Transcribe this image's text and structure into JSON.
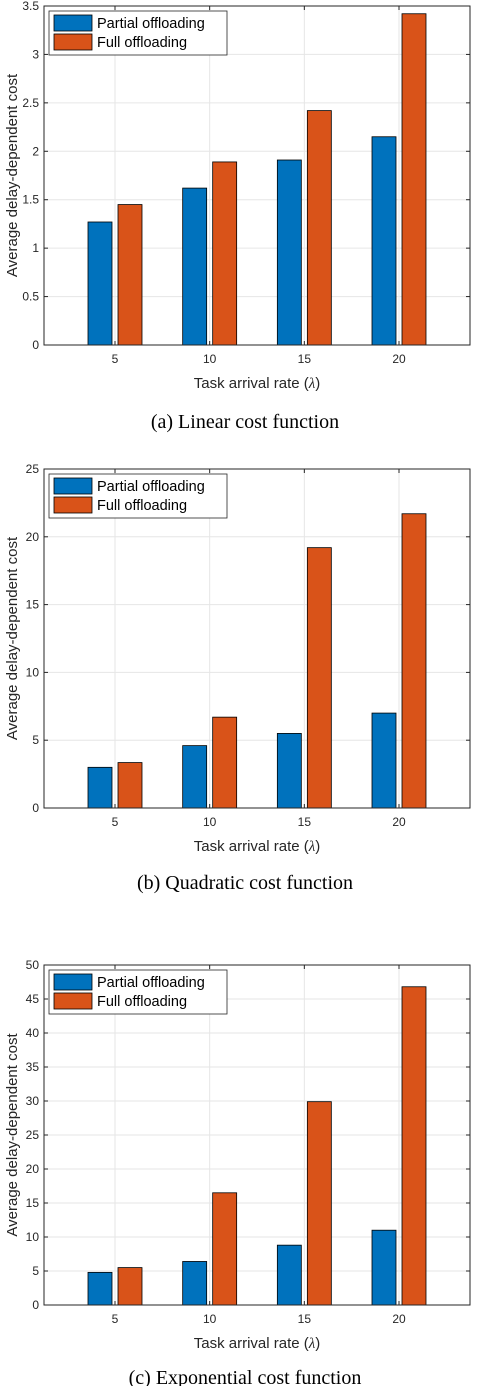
{
  "colors": {
    "partial": "#0072bd",
    "full": "#d95319",
    "grid": "#e6e6e6",
    "axis": "#262626"
  },
  "legend": [
    "Partial offloading",
    "Full offloading"
  ],
  "chart_data": [
    {
      "type": "bar",
      "caption": "(a) Linear cost function",
      "xlabel": "Task arrival rate (λ)",
      "xlabel_prefix": "Task arrival rate (",
      "xlabel_symbol": "λ",
      "xlabel_suffix": ")",
      "ylabel": "Average delay-dependent cost",
      "categories": [
        "5",
        "10",
        "15",
        "20"
      ],
      "ylim": [
        0,
        3.5
      ],
      "yticks": [
        "0",
        "0.5",
        "1",
        "1.5",
        "2",
        "2.5",
        "3",
        "3.5"
      ],
      "yticks_values": [
        0,
        0.5,
        1,
        1.5,
        2,
        2.5,
        3,
        3.5
      ],
      "grid": true,
      "legend_position": "top-left",
      "series": [
        {
          "name": "Partial offloading",
          "values": [
            1.27,
            1.62,
            1.91,
            2.15
          ]
        },
        {
          "name": "Full offloading",
          "values": [
            1.45,
            1.89,
            2.42,
            3.42
          ]
        }
      ]
    },
    {
      "type": "bar",
      "caption": "(b) Quadratic cost function",
      "xlabel": "Task arrival rate (λ)",
      "xlabel_prefix": "Task arrival rate (",
      "xlabel_symbol": "λ",
      "xlabel_suffix": ")",
      "ylabel": "Average delay-dependent cost",
      "categories": [
        "5",
        "10",
        "15",
        "20"
      ],
      "ylim": [
        0,
        25
      ],
      "yticks": [
        "0",
        "5",
        "10",
        "15",
        "20",
        "25"
      ],
      "yticks_values": [
        0,
        5,
        10,
        15,
        20,
        25
      ],
      "grid": true,
      "legend_position": "top-left",
      "series": [
        {
          "name": "Partial offloading",
          "values": [
            3.0,
            4.6,
            5.5,
            7.0
          ]
        },
        {
          "name": "Full offloading",
          "values": [
            3.35,
            6.7,
            19.2,
            21.7
          ]
        }
      ]
    },
    {
      "type": "bar",
      "caption": "(c) Exponential cost function",
      "xlabel": "Task arrival rate (λ)",
      "xlabel_prefix": "Task arrival rate (",
      "xlabel_symbol": "λ",
      "xlabel_suffix": ")",
      "ylabel": "Average delay-dependent cost",
      "categories": [
        "5",
        "10",
        "15",
        "20"
      ],
      "ylim": [
        0,
        50
      ],
      "yticks": [
        "0",
        "5",
        "10",
        "15",
        "20",
        "25",
        "30",
        "35",
        "40",
        "45",
        "50"
      ],
      "yticks_values": [
        0,
        5,
        10,
        15,
        20,
        25,
        30,
        35,
        40,
        45,
        50
      ],
      "grid": true,
      "legend_position": "top-left",
      "series": [
        {
          "name": "Partial offloading",
          "values": [
            4.8,
            6.4,
            8.8,
            11.0
          ]
        },
        {
          "name": "Full offloading",
          "values": [
            5.5,
            16.5,
            29.9,
            46.8
          ]
        }
      ]
    }
  ]
}
